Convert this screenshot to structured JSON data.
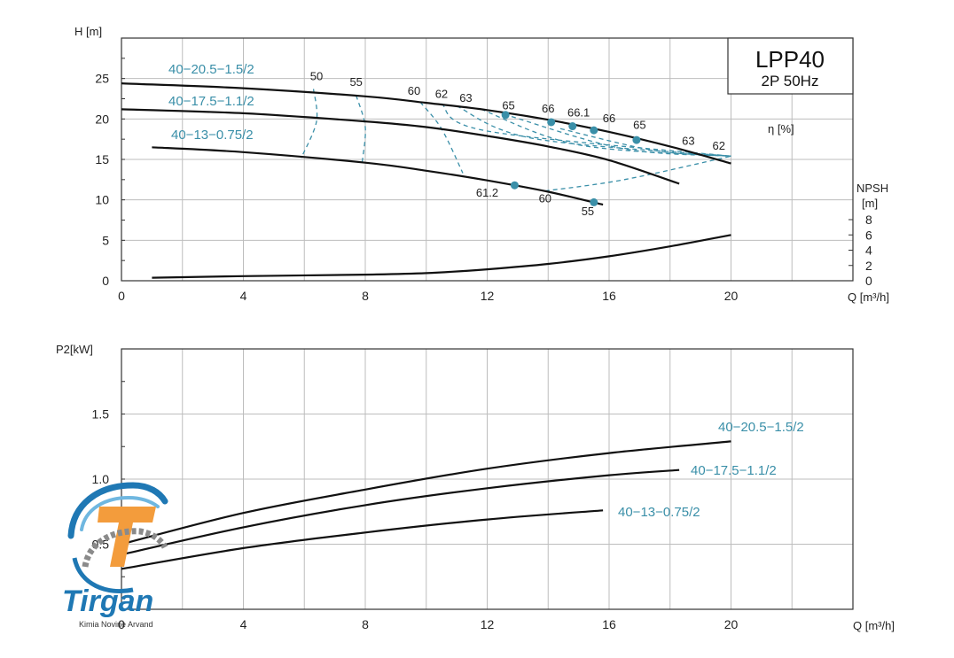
{
  "chart_data": [
    {
      "type": "line",
      "title": "LPP40",
      "subtitle": "2P  50Hz",
      "xlabel": "Q [m³/h]",
      "ylabel": "H [m]",
      "y2label_line1": "NPSH",
      "y2label_line2": "[m]",
      "eff_unit": "η  [%]",
      "xlim": [
        0,
        24
      ],
      "ylim": [
        0,
        30
      ],
      "y2lim": [
        0,
        8
      ],
      "xticks": [
        "0",
        "4",
        "8",
        "12",
        "16",
        "20"
      ],
      "yticks": [
        "0",
        "5",
        "10",
        "15",
        "20",
        "25"
      ],
      "y2ticks": [
        "0",
        "2",
        "4",
        "6",
        "8"
      ],
      "series": [
        {
          "name": "40−20.5−1.5/2",
          "x": [
            0,
            4,
            8,
            10,
            12,
            14,
            16,
            18,
            20
          ],
          "y": [
            24.4,
            23.8,
            22.8,
            22.0,
            21.1,
            19.9,
            18.4,
            16.6,
            14.5
          ]
        },
        {
          "name": "40−17.5−1.1/2",
          "x": [
            0,
            4,
            8,
            10,
            12,
            14,
            16,
            18.3
          ],
          "y": [
            21.2,
            20.7,
            19.7,
            19.0,
            17.9,
            16.6,
            14.9,
            12.0
          ]
        },
        {
          "name": "40−13−0.75/2",
          "x": [
            1,
            4,
            8,
            10,
            12,
            14,
            15.8
          ],
          "y": [
            16.5,
            15.9,
            14.6,
            13.6,
            12.4,
            11.0,
            9.4
          ]
        }
      ],
      "npsh": {
        "x": [
          1,
          4,
          8,
          10,
          12,
          14,
          16,
          18,
          20
        ],
        "y": [
          0.4,
          0.6,
          0.8,
          1.0,
          1.5,
          2.2,
          3.2,
          4.5,
          6.0
        ]
      },
      "efficiency_labels": [
        {
          "text": "50",
          "x": 6.4,
          "y": 24.8
        },
        {
          "text": "55",
          "x": 7.7,
          "y": 24.1
        },
        {
          "text": "60",
          "x": 9.6,
          "y": 23.0
        },
        {
          "text": "62",
          "x": 10.5,
          "y": 22.6
        },
        {
          "text": "63",
          "x": 11.3,
          "y": 22.1
        },
        {
          "text": "65",
          "x": 12.7,
          "y": 21.2
        },
        {
          "text": "66",
          "x": 14.0,
          "y": 20.8
        },
        {
          "text": "66.1",
          "x": 15.0,
          "y": 20.3
        },
        {
          "text": "66",
          "x": 16.0,
          "y": 19.6
        },
        {
          "text": "65",
          "x": 17.0,
          "y": 18.8
        },
        {
          "text": "63",
          "x": 18.6,
          "y": 16.8
        },
        {
          "text": "62",
          "x": 19.6,
          "y": 16.2
        },
        {
          "text": "61.2",
          "x": 12.0,
          "y": 10.4
        },
        {
          "text": "60",
          "x": 13.9,
          "y": 9.7
        },
        {
          "text": "55",
          "x": 15.3,
          "y": 8.1
        }
      ],
      "efficiency_points": [
        {
          "x": 12.6,
          "y": 20.5
        },
        {
          "x": 14.1,
          "y": 19.6
        },
        {
          "x": 14.8,
          "y": 19.1
        },
        {
          "x": 15.5,
          "y": 18.6
        },
        {
          "x": 16.9,
          "y": 17.4
        },
        {
          "x": 12.9,
          "y": 11.8
        },
        {
          "x": 15.5,
          "y": 9.7
        }
      ],
      "iso_curves": [
        [
          [
            6.3,
            23.7
          ],
          [
            6.4,
            19.7
          ],
          [
            5.9,
            15.2
          ]
        ],
        [
          [
            7.7,
            22.9
          ],
          [
            8.0,
            19.0
          ],
          [
            7.9,
            14.7
          ]
        ],
        [
          [
            9.8,
            22.1
          ],
          [
            10.5,
            18.8
          ],
          [
            11.2,
            13.3
          ]
        ],
        [
          [
            10.5,
            21.9
          ],
          [
            12.0,
            18.5
          ],
          [
            20.0,
            15.4
          ]
        ],
        [
          [
            11.0,
            21.6
          ],
          [
            13.5,
            17.6
          ],
          [
            20.0,
            15.4
          ]
        ],
        [
          [
            11.8,
            21.2
          ],
          [
            15.0,
            16.8
          ],
          [
            20.0,
            15.4
          ]
        ],
        [
          [
            12.8,
            20.3
          ],
          [
            16.5,
            16.3
          ],
          [
            20.0,
            15.4
          ]
        ],
        [
          [
            14.4,
            18.8
          ],
          [
            17.5,
            16.1
          ],
          [
            20.0,
            15.4
          ]
        ],
        [
          [
            13.9,
            11.1
          ],
          [
            16.5,
            12.5
          ],
          [
            20.0,
            15.4
          ]
        ]
      ]
    },
    {
      "type": "line",
      "xlabel": "Q [m³/h]",
      "ylabel": "P2[kW]",
      "xlim": [
        0,
        24
      ],
      "ylim": [
        0,
        2
      ],
      "xticks": [
        "0",
        "4",
        "8",
        "12",
        "16",
        "20"
      ],
      "yticks": [
        "0.5",
        "1.0",
        "1.5"
      ],
      "series": [
        {
          "name": "40−20.5−1.5/2",
          "x": [
            0,
            4,
            8,
            12,
            16,
            20
          ],
          "y": [
            0.5,
            0.74,
            0.92,
            1.08,
            1.2,
            1.29
          ]
        },
        {
          "name": "40−17.5−1.1/2",
          "x": [
            0,
            4,
            8,
            12,
            16,
            18.3
          ],
          "y": [
            0.42,
            0.63,
            0.8,
            0.93,
            1.03,
            1.07
          ]
        },
        {
          "name": "40−13−0.75/2",
          "x": [
            0,
            4,
            8,
            12,
            15.8
          ],
          "y": [
            0.31,
            0.47,
            0.59,
            0.69,
            0.76
          ]
        }
      ]
    }
  ],
  "logo": {
    "name": "Tirgan",
    "tagline": "Kimia Novine Arvand"
  },
  "colors": {
    "series_label": "#3a8fa8",
    "curve": "#111111",
    "grid": "#bdbdbd",
    "logo_blue": "#1f78b4",
    "logo_orange": "#f39c3c",
    "logo_gray": "#8a8a8a"
  }
}
